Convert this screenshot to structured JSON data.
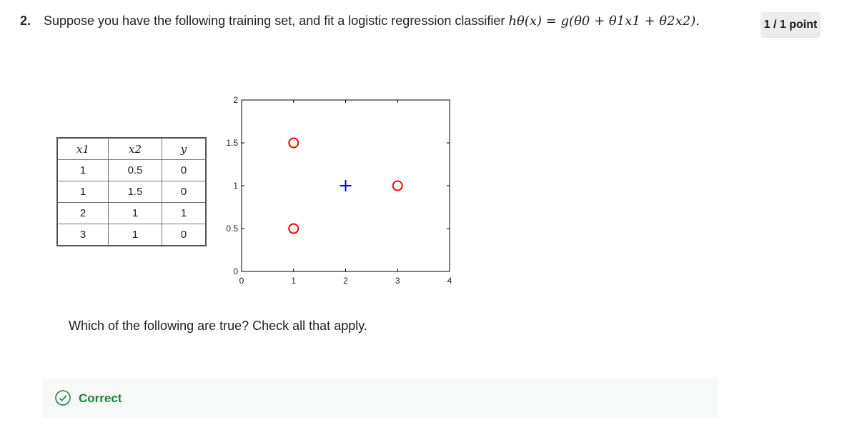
{
  "question": {
    "number": "2.",
    "text": "Suppose you have the following training set, and fit a logistic regression classifier",
    "formula": "hθ(x) = g(θ0 + θ1x1 + θ2x2)."
  },
  "points": "1 / 1 point",
  "table": {
    "headers": [
      "x1",
      "x2",
      "y"
    ],
    "rows": [
      [
        "1",
        "0.5",
        "0"
      ],
      [
        "1",
        "1.5",
        "0"
      ],
      [
        "2",
        "1",
        "1"
      ],
      [
        "3",
        "1",
        "0"
      ]
    ]
  },
  "chart_data": {
    "type": "scatter",
    "xlim": [
      0,
      4
    ],
    "ylim": [
      0,
      2
    ],
    "xticks": [
      "0",
      "1",
      "2",
      "3",
      "4"
    ],
    "yticks": [
      "0",
      "0.5",
      "1",
      "1.5",
      "2"
    ],
    "grid": false,
    "series": [
      {
        "marker": "o",
        "color": "#ff0000",
        "x": [
          1,
          1,
          3
        ],
        "y": [
          1.5,
          0.5,
          1
        ]
      },
      {
        "marker": "+",
        "color": "#0000ff",
        "x": [
          2
        ],
        "y": [
          1
        ]
      }
    ]
  },
  "prompt": "Which of the following are true? Check all that apply.",
  "feedback": {
    "label": "Correct",
    "icon": "check-circle-icon",
    "color": "#1d7c3e"
  }
}
